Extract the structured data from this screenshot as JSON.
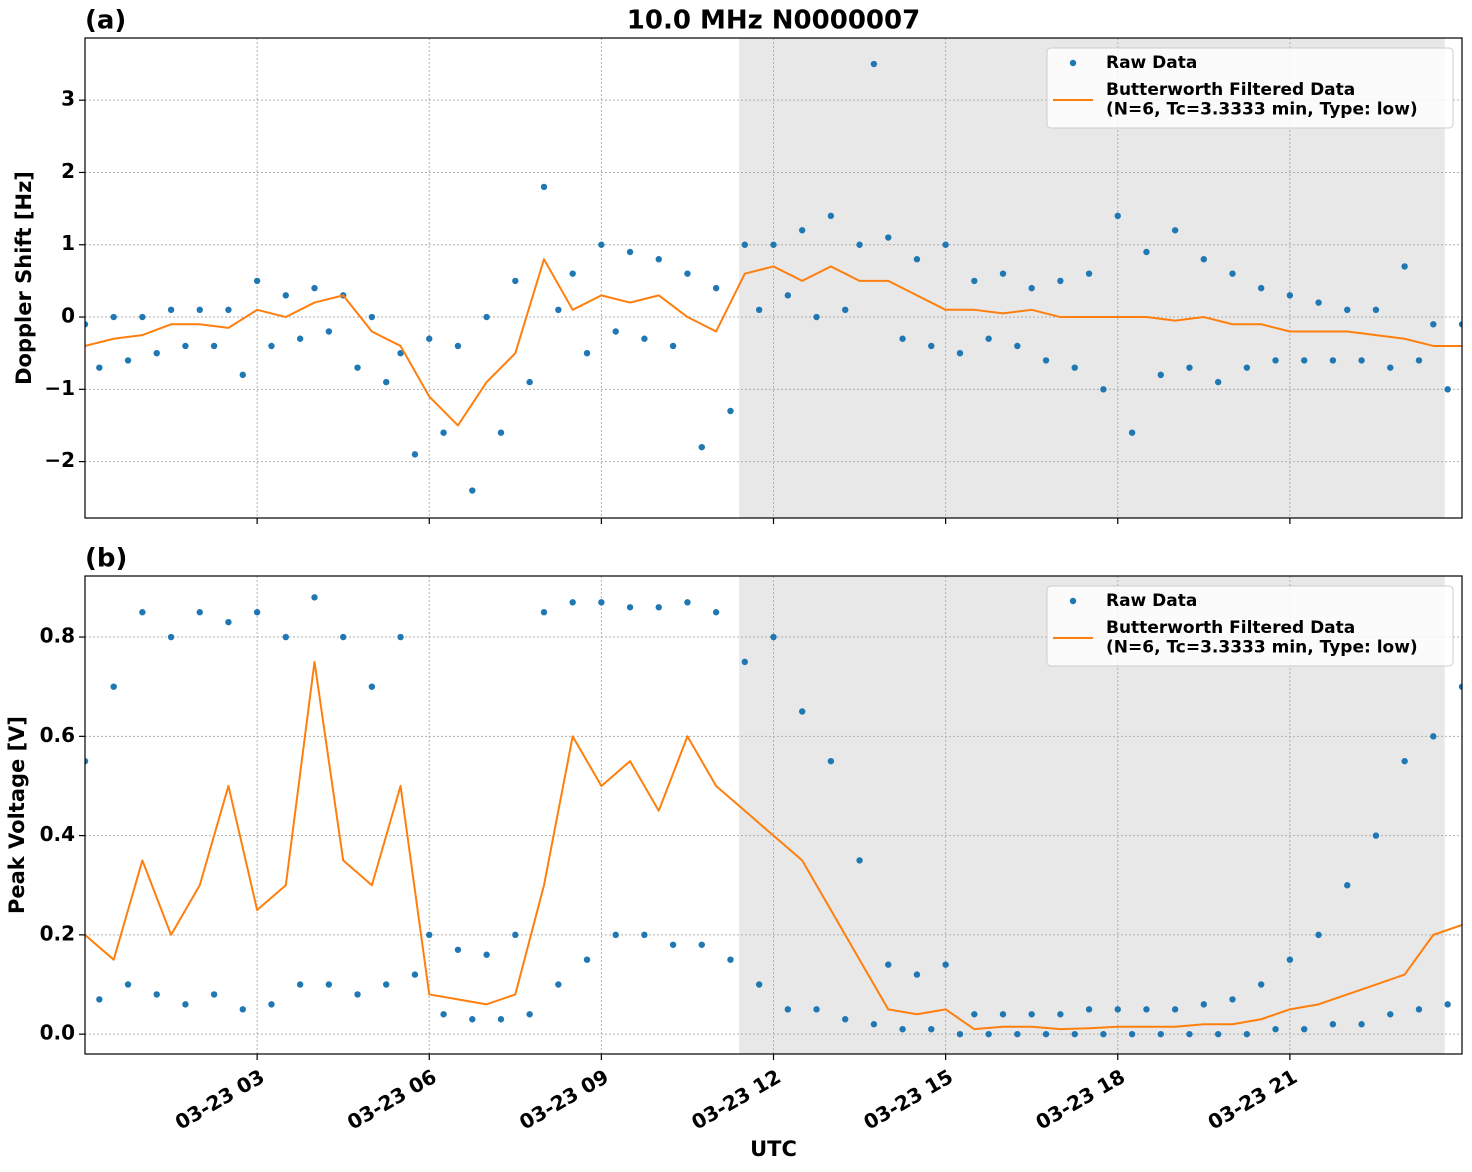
{
  "chart_data": [
    {
      "type": "line",
      "panel_label": "(a)",
      "title": "10.0 MHz N0000007",
      "ylabel": "Doppler Shift [Hz]",
      "xlim": [
        0,
        24
      ],
      "xticks": [
        3,
        6,
        9,
        12,
        15,
        18,
        21
      ],
      "ylim": [
        -2.78,
        3.86
      ],
      "yticks": [
        {
          "value": -2,
          "label": "−2"
        },
        {
          "value": -1,
          "label": "−1"
        },
        0,
        1,
        2,
        3
      ],
      "grid": true,
      "shade": [
        11.4,
        23.7
      ],
      "legend": "upper right",
      "series": [
        {
          "name": "Raw Data",
          "style": "points",
          "color": "#1f77b4",
          "x": [
            0,
            0.25,
            0.5,
            0.75,
            1,
            1.25,
            1.5,
            1.75,
            2,
            2.25,
            2.5,
            2.75,
            3,
            3.25,
            3.5,
            3.75,
            4,
            4.25,
            4.5,
            4.75,
            5,
            5.25,
            5.5,
            5.75,
            6,
            6.25,
            6.5,
            6.75,
            7,
            7.25,
            7.5,
            7.75,
            8,
            8.25,
            8.5,
            8.75,
            9,
            9.25,
            9.5,
            9.75,
            10,
            10.25,
            10.5,
            10.75,
            11,
            11.25,
            11.5,
            11.75,
            12,
            12.25,
            12.5,
            12.75,
            13,
            13.25,
            13.5,
            13.75,
            14,
            14.25,
            14.5,
            14.75,
            15,
            15.25,
            15.5,
            15.75,
            16,
            16.25,
            16.5,
            16.75,
            17,
            17.25,
            17.5,
            17.75,
            18,
            18.25,
            18.5,
            18.75,
            19,
            19.25,
            19.5,
            19.75,
            20,
            20.25,
            20.5,
            20.75,
            21,
            21.25,
            21.5,
            21.75,
            22,
            22.25,
            22.5,
            22.75,
            23,
            23.25,
            23.5,
            23.75,
            24
          ],
          "values": [
            -0.1,
            -0.7,
            0.0,
            -0.6,
            0.0,
            -0.5,
            0.1,
            -0.4,
            0.1,
            -0.4,
            0.1,
            -0.8,
            0.5,
            -0.4,
            0.3,
            -0.3,
            0.4,
            -0.2,
            0.3,
            -0.7,
            0.0,
            -0.9,
            -0.5,
            -1.9,
            -0.3,
            -1.6,
            -0.4,
            -2.4,
            0.0,
            -1.6,
            0.5,
            -0.9,
            1.8,
            0.1,
            0.6,
            -0.5,
            1.0,
            -0.2,
            0.9,
            -0.3,
            0.8,
            -0.4,
            0.6,
            -1.8,
            0.4,
            -1.3,
            1.0,
            0.1,
            1.0,
            0.3,
            1.2,
            0.0,
            1.4,
            0.1,
            1.0,
            3.5,
            1.1,
            -0.3,
            0.8,
            -0.4,
            1.0,
            -0.5,
            0.5,
            -0.3,
            0.6,
            -0.4,
            0.4,
            -0.6,
            0.5,
            -0.7,
            0.6,
            -1.0,
            1.4,
            -1.6,
            0.9,
            -0.8,
            1.2,
            -0.7,
            0.8,
            -0.9,
            0.6,
            -0.7,
            0.4,
            -0.6,
            0.3,
            -0.6,
            0.2,
            -0.6,
            0.1,
            -0.6,
            0.1,
            -0.7,
            0.7,
            -0.6,
            -0.1,
            -1.0,
            -0.1
          ]
        },
        {
          "name": "Butterworth Filtered Data\n(N=6, Tc=3.3333 min, Type: low)",
          "style": "line",
          "color": "#ff7f0e",
          "x": [
            0,
            0.5,
            1,
            1.5,
            2,
            2.5,
            3,
            3.5,
            4,
            4.5,
            5,
            5.5,
            6,
            6.5,
            7,
            7.5,
            8,
            8.5,
            9,
            9.5,
            10,
            10.5,
            11,
            11.5,
            12,
            12.5,
            13,
            13.5,
            14,
            14.5,
            15,
            15.5,
            16,
            16.5,
            17,
            17.5,
            18,
            18.5,
            19,
            19.5,
            20,
            20.5,
            21,
            21.5,
            22,
            22.5,
            23,
            23.5,
            24
          ],
          "values": [
            -0.4,
            -0.3,
            -0.25,
            -0.1,
            -0.1,
            -0.15,
            0.1,
            0.0,
            0.2,
            0.3,
            -0.2,
            -0.4,
            -1.1,
            -1.5,
            -0.9,
            -0.5,
            0.8,
            0.1,
            0.3,
            0.2,
            0.3,
            0.0,
            -0.2,
            0.6,
            0.7,
            0.5,
            0.7,
            0.5,
            0.5,
            0.3,
            0.1,
            0.1,
            0.05,
            0.1,
            0.0,
            0.0,
            0.0,
            0.0,
            -0.05,
            0.0,
            -0.1,
            -0.1,
            -0.2,
            -0.2,
            -0.2,
            -0.25,
            -0.3,
            -0.4,
            -0.4
          ]
        }
      ]
    },
    {
      "type": "line",
      "panel_label": "(b)",
      "ylabel": "Peak Voltage [V]",
      "xlabel": "UTC",
      "xlim": [
        0,
        24
      ],
      "xticks": [
        {
          "value": 3,
          "label": "03-23 03"
        },
        {
          "value": 6,
          "label": "03-23 06"
        },
        {
          "value": 9,
          "label": "03-23 09"
        },
        {
          "value": 12,
          "label": "03-23 12"
        },
        {
          "value": 15,
          "label": "03-23 15"
        },
        {
          "value": 18,
          "label": "03-23 18"
        },
        {
          "value": 21,
          "label": "03-23 21"
        }
      ],
      "ylim": [
        -0.04,
        0.923
      ],
      "yticks": [
        {
          "value": 0,
          "label": "0.0"
        },
        0.2,
        0.4,
        0.6,
        0.8
      ],
      "grid": true,
      "shade": [
        11.4,
        23.7
      ],
      "legend": "upper right",
      "series": [
        {
          "name": "Raw Data",
          "style": "points",
          "color": "#1f77b4",
          "x": [
            0,
            0.25,
            0.5,
            0.75,
            1,
            1.25,
            1.5,
            1.75,
            2,
            2.25,
            2.5,
            2.75,
            3,
            3.25,
            3.5,
            3.75,
            4,
            4.25,
            4.5,
            4.75,
            5,
            5.25,
            5.5,
            5.75,
            6,
            6.25,
            6.5,
            6.75,
            7,
            7.25,
            7.5,
            7.75,
            8,
            8.25,
            8.5,
            8.75,
            9,
            9.25,
            9.5,
            9.75,
            10,
            10.25,
            10.5,
            10.75,
            11,
            11.25,
            11.5,
            11.75,
            12,
            12.25,
            12.5,
            12.75,
            13,
            13.25,
            13.5,
            13.75,
            14,
            14.25,
            14.5,
            14.75,
            15,
            15.25,
            15.5,
            15.75,
            16,
            16.25,
            16.5,
            16.75,
            17,
            17.25,
            17.5,
            17.75,
            18,
            18.25,
            18.5,
            18.75,
            19,
            19.25,
            19.5,
            19.75,
            20,
            20.25,
            20.5,
            20.75,
            21,
            21.25,
            21.5,
            21.75,
            22,
            22.25,
            22.5,
            22.75,
            23,
            23.25,
            23.5,
            23.75,
            24
          ],
          "values": [
            0.55,
            0.07,
            0.7,
            0.1,
            0.85,
            0.08,
            0.8,
            0.06,
            0.85,
            0.08,
            0.83,
            0.05,
            0.85,
            0.06,
            0.8,
            0.1,
            0.88,
            0.1,
            0.8,
            0.08,
            0.7,
            0.1,
            0.8,
            0.12,
            0.2,
            0.04,
            0.17,
            0.03,
            0.16,
            0.03,
            0.2,
            0.04,
            0.85,
            0.1,
            0.87,
            0.15,
            0.87,
            0.2,
            0.86,
            0.2,
            0.86,
            0.18,
            0.87,
            0.18,
            0.85,
            0.15,
            0.75,
            0.1,
            0.8,
            0.05,
            0.65,
            0.05,
            0.55,
            0.03,
            0.35,
            0.02,
            0.14,
            0.01,
            0.12,
            0.01,
            0.14,
            0.0,
            0.04,
            0.0,
            0.04,
            0.0,
            0.04,
            0.0,
            0.04,
            0.0,
            0.05,
            0.0,
            0.05,
            0.0,
            0.05,
            0.0,
            0.05,
            0.0,
            0.06,
            0.0,
            0.07,
            0.0,
            0.1,
            0.01,
            0.15,
            0.01,
            0.2,
            0.02,
            0.3,
            0.02,
            0.4,
            0.04,
            0.55,
            0.05,
            0.6,
            0.06,
            0.7
          ]
        },
        {
          "name": "Butterworth Filtered Data\n(N=6, Tc=3.3333 min, Type: low)",
          "style": "line",
          "color": "#ff7f0e",
          "x": [
            0,
            0.5,
            1,
            1.5,
            2,
            2.5,
            3,
            3.5,
            4,
            4.5,
            5,
            5.5,
            6,
            6.5,
            7,
            7.5,
            8,
            8.5,
            9,
            9.5,
            10,
            10.5,
            11,
            11.5,
            12,
            12.5,
            13,
            13.5,
            14,
            14.5,
            15,
            15.5,
            16,
            16.5,
            17,
            17.5,
            18,
            18.5,
            19,
            19.5,
            20,
            20.5,
            21,
            21.5,
            22,
            22.5,
            23,
            23.5,
            24
          ],
          "values": [
            0.2,
            0.15,
            0.35,
            0.2,
            0.3,
            0.5,
            0.25,
            0.3,
            0.75,
            0.35,
            0.3,
            0.5,
            0.08,
            0.07,
            0.06,
            0.08,
            0.3,
            0.6,
            0.5,
            0.55,
            0.45,
            0.6,
            0.5,
            0.45,
            0.4,
            0.35,
            0.25,
            0.15,
            0.05,
            0.04,
            0.05,
            0.01,
            0.015,
            0.015,
            0.01,
            0.012,
            0.015,
            0.015,
            0.015,
            0.02,
            0.02,
            0.03,
            0.05,
            0.06,
            0.08,
            0.1,
            0.12,
            0.2,
            0.22
          ]
        }
      ]
    }
  ]
}
